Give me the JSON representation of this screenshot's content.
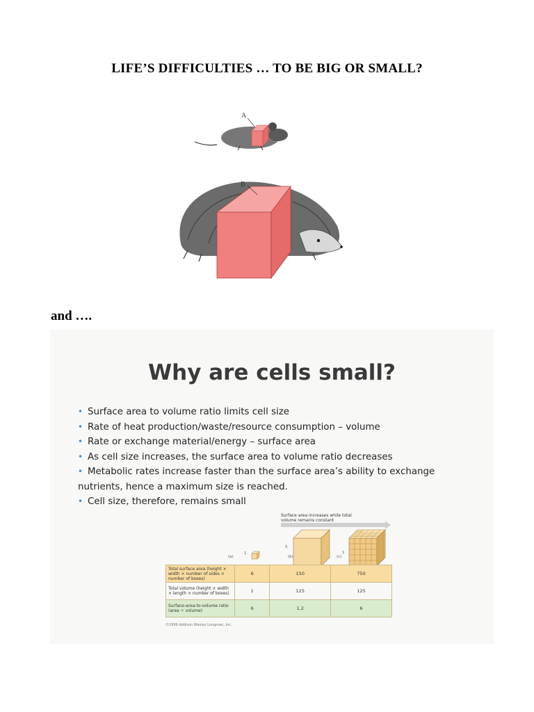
{
  "page": {
    "title": "LIFE’S DIFFICULTIES … TO BE BIG OR SMALL?",
    "and_text": "and …."
  },
  "illustration": {
    "label_a": "A",
    "label_b": "B",
    "colors": {
      "cube_front": "#f07f7f",
      "cube_top": "#f6a5a5",
      "cube_side": "#e56a6a"
    }
  },
  "slide": {
    "title": "Why are cells small?",
    "bullet_color": "#3d8fd1",
    "bullets": [
      "Surface area to volume ratio limits cell size",
      "Rate of heat production/waste/resource consumption – volume",
      "Rate or exchange material/energy – surface area",
      "As cell size increases, the surface area to volume ratio decreases",
      "Metabolic rates increase faster than the surface area’s ability to exchange",
      "nutrients, hence a maximum size is reached.",
      "Cell size, therefore, remains small"
    ]
  },
  "figure": {
    "top_label": "Surface area increases while total volume remains constant",
    "col_labels": [
      "(a)",
      "(b)",
      "(c)"
    ],
    "dim_small": "1",
    "dim_mid": "5",
    "dim_right": "1",
    "rows": [
      {
        "label": "Total surface area (height × width × number of sides × number of boxes)",
        "values": [
          "6",
          "150",
          "750"
        ]
      },
      {
        "label": "Total volume (height × width × length × number of boxes)",
        "values": [
          "1",
          "125",
          "125"
        ]
      },
      {
        "label": "Surface-area-to-volume ratio (area ÷ volume)",
        "values": [
          "6",
          "1.2",
          "6"
        ]
      }
    ],
    "credit": "©1999 Addison Wesley Longman, Inc."
  }
}
